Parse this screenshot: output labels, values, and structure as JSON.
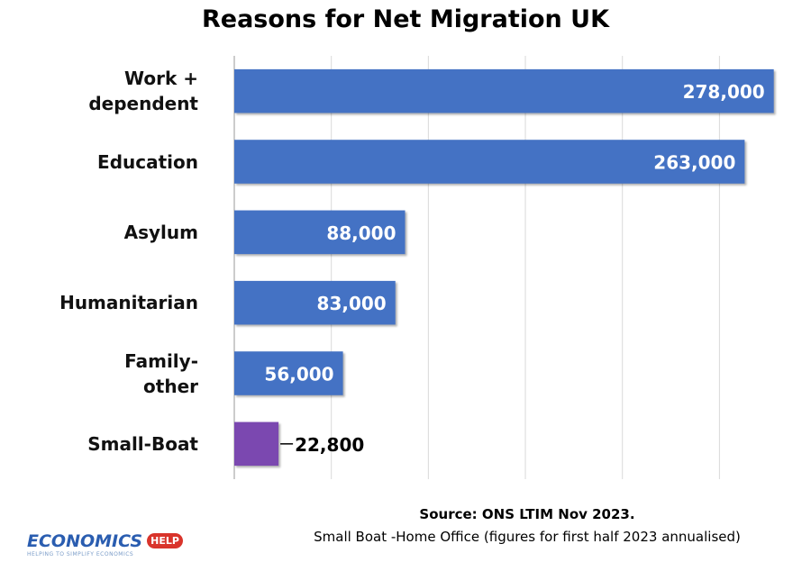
{
  "chart_data": {
    "type": "bar",
    "orientation": "horizontal",
    "title": "Reasons for Net Migration UK",
    "categories": [
      "Work + dependent",
      "Education",
      "Asylum",
      "Humanitarian",
      "Family-other",
      "Small-Boat"
    ],
    "values": [
      278000,
      263000,
      88000,
      83000,
      56000,
      22800
    ],
    "value_labels": [
      "278,000",
      "263,000",
      "88,000",
      "83,000",
      "56,000",
      "22,800"
    ],
    "colors": [
      "#4472c4",
      "#4472c4",
      "#4472c4",
      "#4472c4",
      "#4472c4",
      "#7b48b0"
    ],
    "xlim": [
      0,
      280000
    ],
    "xticks": [
      0,
      50000,
      100000,
      150000,
      200000,
      250000
    ],
    "grid": true,
    "notes": [
      "Source: ONS LTIM Nov 2023.",
      "Small Boat -Home Office (figures for first half 2023 annualised)"
    ]
  },
  "logo": {
    "name": "ECONOMICS",
    "badge": "HELP",
    "tagline": "HELPING TO SIMPLIFY ECONOMICS"
  }
}
